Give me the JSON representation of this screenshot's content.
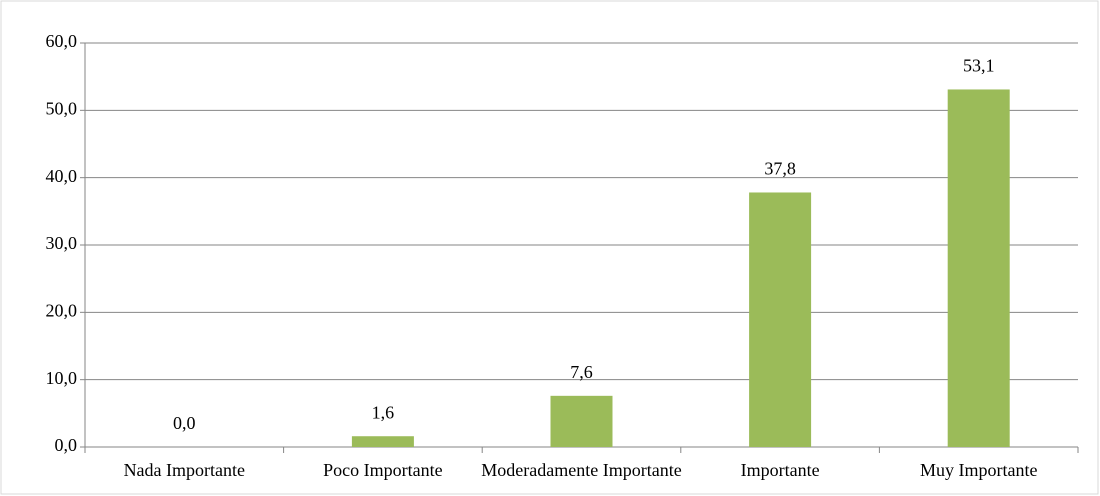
{
  "chart_data": {
    "type": "bar",
    "categories": [
      "Nada Importante",
      "Poco Importante",
      "Moderadamente Importante",
      "Importante",
      "Muy Importante"
    ],
    "values": [
      0,
      1.6,
      7.6,
      37.8,
      53.1
    ],
    "value_labels": [
      "0,0",
      "1,6",
      "7,6",
      "37,8",
      "53,1"
    ],
    "color": "#9bbb59",
    "ylim": [
      0,
      60
    ],
    "yticks": [
      {
        "value": 0,
        "label": "0,0"
      },
      {
        "value": 10,
        "label": "10,0"
      },
      {
        "value": 20,
        "label": "20,0"
      },
      {
        "value": 30,
        "label": "30,0"
      },
      {
        "value": 40,
        "label": "40,0"
      },
      {
        "value": 50,
        "label": "50,0"
      },
      {
        "value": 60,
        "label": "60,0"
      }
    ],
    "grid": true
  }
}
